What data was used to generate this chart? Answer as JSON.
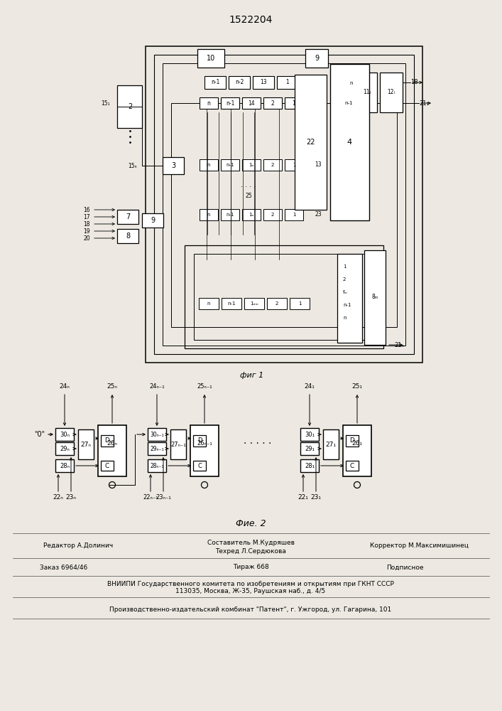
{
  "title": "1522204",
  "fig1_caption": "фиг 1",
  "fig2_caption": "Фие. 2",
  "bg_color": "#f0ede8",
  "footer": {
    "editor": "Редактор А.Долинич",
    "compiler": "Составитель М.Кудряшев",
    "techred": "Техред Л.Сердюкова",
    "corrector": "Корректор М.Максимишинец",
    "order": "Заказ 6964/46",
    "circulation": "Тираж 668",
    "subscription": "Подписное",
    "vniipи": "ВНИИПИ Государственного комитета по изобретениям и открытиям при ГКНТ СССР",
    "address": "113035, Москва, Ж-35, Раушская наб., д. 4/5",
    "plant": "Производственно-издательский комбинат \"Патент\", г. Ужгород, ул. Гагарина, 101"
  }
}
